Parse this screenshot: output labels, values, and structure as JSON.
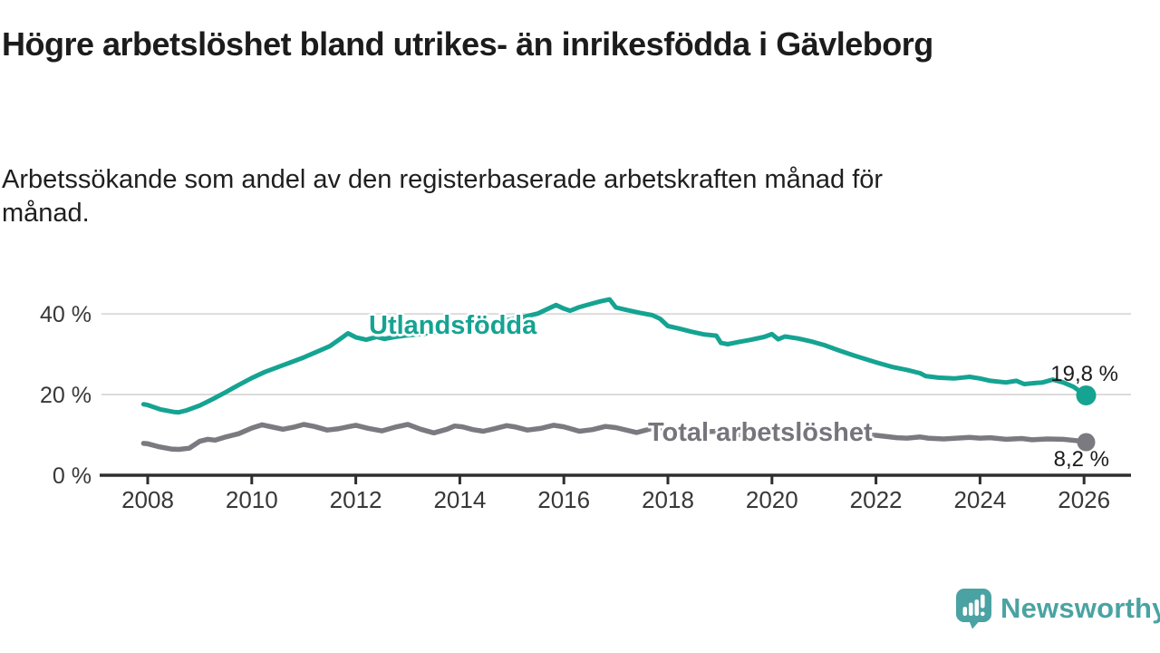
{
  "header": {
    "title": "Högre arbetslöshet bland utrikes- än inrikesfödda i Gävleborg",
    "subtitle": "Arbetssökande som andel av den registerbaserade arbetskraften månad för månad."
  },
  "footer": {
    "brand": "Newsworthy",
    "logo_icon": "bar-chart-speech-bubble-icon"
  },
  "colors": {
    "teal_line": "#15a392",
    "gray_line": "#7b7a80",
    "gray_label": "#76757d",
    "grid": "#dcdcdc",
    "axis": "#2e2e2e",
    "tick_text": "#383838",
    "title_text": "#1c1c1c",
    "brand_teal": "#4aa3a2",
    "background": "#ffffff"
  },
  "chart_data": {
    "type": "line",
    "title": "Högre arbetslöshet bland utrikes- än inrikesfödda i Gävleborg",
    "subtitle": "Arbetssökande som andel av den registerbaserade arbetskraften månad för månad.",
    "xlabel": "",
    "ylabel": "",
    "x_range": [
      2007.9,
      2026.9
    ],
    "y_range": [
      0,
      47
    ],
    "grid": true,
    "legend_position": "inline-labels",
    "x_ticks": [
      2008,
      2010,
      2012,
      2014,
      2016,
      2018,
      2020,
      2022,
      2024,
      2026
    ],
    "y_ticks": [
      {
        "value": 40,
        "label": "40 %"
      },
      {
        "value": 20,
        "label": "20 %"
      },
      {
        "value": 0,
        "label": "0 %"
      }
    ],
    "series": [
      {
        "name": "Utlandsfödda",
        "color": "#15a392",
        "width": 5,
        "dot_radius": 11,
        "end_label": "19,8 %",
        "end_value": 19.8,
        "points": [
          [
            2007.92,
            17.6
          ],
          [
            2008.0,
            17.4
          ],
          [
            2008.25,
            16.3
          ],
          [
            2008.5,
            15.7
          ],
          [
            2008.6,
            15.6
          ],
          [
            2008.75,
            16.1
          ],
          [
            2009.0,
            17.3
          ],
          [
            2009.25,
            18.9
          ],
          [
            2009.5,
            20.6
          ],
          [
            2009.75,
            22.4
          ],
          [
            2010.0,
            24.1
          ],
          [
            2010.25,
            25.6
          ],
          [
            2010.5,
            26.8
          ],
          [
            2010.75,
            28.0
          ],
          [
            2011.0,
            29.2
          ],
          [
            2011.25,
            30.6
          ],
          [
            2011.5,
            32.0
          ],
          [
            2011.7,
            33.8
          ],
          [
            2011.85,
            35.2
          ],
          [
            2012.0,
            34.2
          ],
          [
            2012.2,
            33.6
          ],
          [
            2012.4,
            34.3
          ],
          [
            2012.55,
            33.8
          ],
          [
            2012.75,
            34.3
          ],
          [
            2013.0,
            34.7
          ],
          [
            2013.33,
            35.1
          ],
          [
            2013.66,
            35.6
          ],
          [
            2014.0,
            36.3
          ],
          [
            2014.33,
            37.0
          ],
          [
            2014.66,
            37.8
          ],
          [
            2015.0,
            38.7
          ],
          [
            2015.25,
            39.3
          ],
          [
            2015.5,
            40.1
          ],
          [
            2015.7,
            41.3
          ],
          [
            2015.85,
            42.2
          ],
          [
            2016.0,
            41.3
          ],
          [
            2016.12,
            40.8
          ],
          [
            2016.3,
            41.7
          ],
          [
            2016.5,
            42.4
          ],
          [
            2016.7,
            43.1
          ],
          [
            2016.88,
            43.6
          ],
          [
            2017.0,
            41.6
          ],
          [
            2017.2,
            41.0
          ],
          [
            2017.45,
            40.3
          ],
          [
            2017.7,
            39.7
          ],
          [
            2017.85,
            38.8
          ],
          [
            2018.0,
            37.0
          ],
          [
            2018.2,
            36.4
          ],
          [
            2018.45,
            35.6
          ],
          [
            2018.7,
            34.9
          ],
          [
            2018.93,
            34.6
          ],
          [
            2019.02,
            32.8
          ],
          [
            2019.15,
            32.5
          ],
          [
            2019.35,
            33.0
          ],
          [
            2019.6,
            33.6
          ],
          [
            2019.85,
            34.3
          ],
          [
            2020.0,
            35.0
          ],
          [
            2020.12,
            33.7
          ],
          [
            2020.25,
            34.4
          ],
          [
            2020.5,
            33.9
          ],
          [
            2020.75,
            33.2
          ],
          [
            2021.0,
            32.3
          ],
          [
            2021.3,
            30.9
          ],
          [
            2021.6,
            29.6
          ],
          [
            2022.0,
            28.0
          ],
          [
            2022.3,
            26.9
          ],
          [
            2022.6,
            26.1
          ],
          [
            2022.85,
            25.3
          ],
          [
            2022.95,
            24.6
          ],
          [
            2023.2,
            24.2
          ],
          [
            2023.5,
            24.0
          ],
          [
            2023.8,
            24.4
          ],
          [
            2024.0,
            24.0
          ],
          [
            2024.2,
            23.4
          ],
          [
            2024.5,
            23.0
          ],
          [
            2024.7,
            23.4
          ],
          [
            2024.85,
            22.6
          ],
          [
            2025.0,
            22.8
          ],
          [
            2025.2,
            23.0
          ],
          [
            2025.4,
            23.7
          ],
          [
            2025.6,
            23.0
          ],
          [
            2025.8,
            21.9
          ],
          [
            2025.92,
            20.8
          ],
          [
            2026.04,
            19.8
          ]
        ]
      },
      {
        "name": "Total arbetslöshet",
        "color": "#7b7a80",
        "width": 5.5,
        "dot_radius": 10,
        "end_label": "8,2 %",
        "end_value": 8.2,
        "points": [
          [
            2007.92,
            7.9
          ],
          [
            2008.0,
            7.8
          ],
          [
            2008.2,
            7.1
          ],
          [
            2008.45,
            6.5
          ],
          [
            2008.6,
            6.4
          ],
          [
            2008.8,
            6.7
          ],
          [
            2009.0,
            8.4
          ],
          [
            2009.15,
            8.9
          ],
          [
            2009.3,
            8.7
          ],
          [
            2009.5,
            9.5
          ],
          [
            2009.75,
            10.3
          ],
          [
            2010.0,
            11.7
          ],
          [
            2010.2,
            12.5
          ],
          [
            2010.45,
            11.8
          ],
          [
            2010.6,
            11.4
          ],
          [
            2010.8,
            11.9
          ],
          [
            2011.0,
            12.6
          ],
          [
            2011.2,
            12.1
          ],
          [
            2011.45,
            11.2
          ],
          [
            2011.65,
            11.5
          ],
          [
            2011.85,
            12.0
          ],
          [
            2012.0,
            12.4
          ],
          [
            2012.25,
            11.6
          ],
          [
            2012.5,
            11.0
          ],
          [
            2012.75,
            11.9
          ],
          [
            2013.0,
            12.6
          ],
          [
            2013.25,
            11.4
          ],
          [
            2013.5,
            10.5
          ],
          [
            2013.75,
            11.4
          ],
          [
            2013.9,
            12.2
          ],
          [
            2014.05,
            12.0
          ],
          [
            2014.25,
            11.3
          ],
          [
            2014.45,
            10.9
          ],
          [
            2014.65,
            11.5
          ],
          [
            2014.9,
            12.3
          ],
          [
            2015.05,
            12.0
          ],
          [
            2015.3,
            11.2
          ],
          [
            2015.55,
            11.6
          ],
          [
            2015.8,
            12.4
          ],
          [
            2016.0,
            12.0
          ],
          [
            2016.3,
            10.9
          ],
          [
            2016.55,
            11.3
          ],
          [
            2016.8,
            12.1
          ],
          [
            2017.0,
            11.8
          ],
          [
            2017.4,
            10.6
          ],
          [
            2017.7,
            11.6
          ],
          [
            2018.0,
            11.2
          ],
          [
            2018.4,
            10.3
          ],
          [
            2018.7,
            10.8
          ],
          [
            2019.0,
            10.9
          ],
          [
            2019.4,
            10.0
          ],
          [
            2019.7,
            10.5
          ],
          [
            2020.0,
            10.8
          ],
          [
            2020.3,
            11.7
          ],
          [
            2020.6,
            11.3
          ],
          [
            2021.0,
            11.1
          ],
          [
            2021.4,
            10.3
          ],
          [
            2021.7,
            10.1
          ],
          [
            2022.0,
            9.9
          ],
          [
            2022.4,
            9.3
          ],
          [
            2022.6,
            9.2
          ],
          [
            2022.85,
            9.5
          ],
          [
            2023.0,
            9.2
          ],
          [
            2023.3,
            9.0
          ],
          [
            2023.55,
            9.2
          ],
          [
            2023.8,
            9.4
          ],
          [
            2024.0,
            9.2
          ],
          [
            2024.2,
            9.3
          ],
          [
            2024.5,
            8.9
          ],
          [
            2024.8,
            9.1
          ],
          [
            2025.0,
            8.8
          ],
          [
            2025.3,
            9.0
          ],
          [
            2025.6,
            8.9
          ],
          [
            2025.85,
            8.6
          ],
          [
            2026.04,
            8.2
          ]
        ]
      }
    ]
  }
}
